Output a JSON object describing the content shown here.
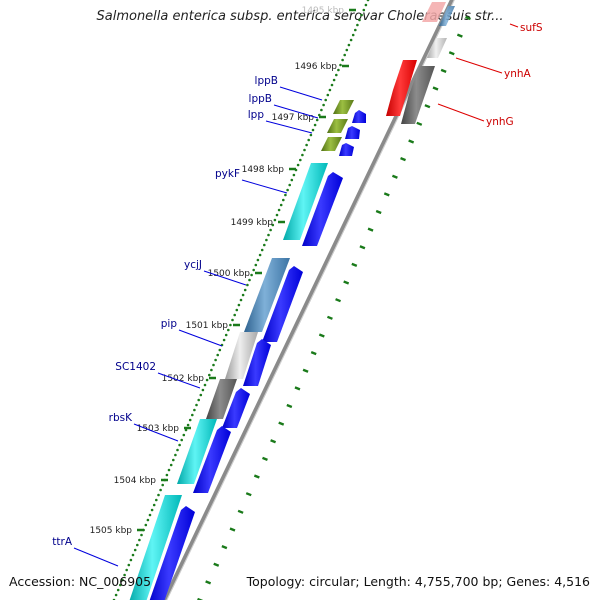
{
  "title": "Salmonella enterica subsp. enterica serovar Choleraesuis str...",
  "accession": "Accession: NC_006905",
  "topology": "Topology: circular; Length: 4,755,700 bp; Genes: 4,516",
  "colors": {
    "label_left": "#00008b",
    "label_right": "#cc0000",
    "tick": "#1a7a1a",
    "backbone": "#8a8a8a",
    "forward_gene": "#0000ee"
  },
  "ticks": [
    "1495 kbp",
    "1496 kbp",
    "1497 kbp",
    "1498 kbp",
    "1499 kbp",
    "1500 kbp",
    "1501 kbp",
    "1502 kbp",
    "1503 kbp",
    "1504 kbp",
    "1505 kbp"
  ],
  "genes_left": [
    {
      "name": "lppB",
      "color": "#6b8e23"
    },
    {
      "name": "lppB",
      "color": "#6b8e23"
    },
    {
      "name": "lpp",
      "color": "#6b8e23"
    },
    {
      "name": "pykF",
      "color": "#00cdcd"
    },
    {
      "name": "ycjJ",
      "color": "#4682b4"
    },
    {
      "name": "pip",
      "color": "#c0c0c0"
    },
    {
      "name": "SC1402",
      "color": "#666666"
    },
    {
      "name": "rbsK",
      "color": "#00cdcd"
    },
    {
      "name": "ttrA",
      "color": "#00cdcd"
    }
  ],
  "genes_right": [
    {
      "name": "sufS",
      "color": "#ee0000"
    },
    {
      "name": "ynhA",
      "color": "#ee0000"
    },
    {
      "name": "ynhG",
      "color": "#ee0000"
    }
  ]
}
